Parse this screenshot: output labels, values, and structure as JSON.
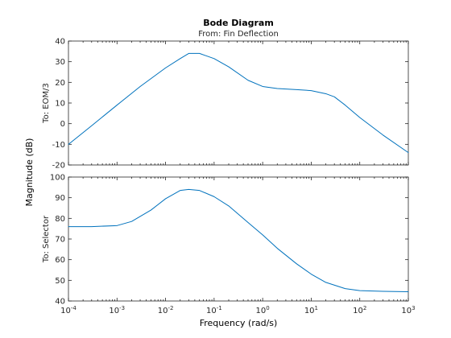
{
  "chart_data": {
    "type": "line",
    "title": "Bode Diagram",
    "subtitle": "From: Fin Deflection",
    "xlabel": "Frequency  (rad/s)",
    "ylabel": "Magnitude (dB)",
    "xscale": "log",
    "xlim": [
      0.0001,
      1000
    ],
    "xtick_labels": [
      {
        "base": "10",
        "exp": "-4"
      },
      {
        "base": "10",
        "exp": "-3"
      },
      {
        "base": "10",
        "exp": "-2"
      },
      {
        "base": "10",
        "exp": "-1"
      },
      {
        "base": "10",
        "exp": "0"
      },
      {
        "base": "10",
        "exp": "1"
      },
      {
        "base": "10",
        "exp": "2"
      },
      {
        "base": "10",
        "exp": "3"
      }
    ],
    "line_color": "#0072BD",
    "panels": [
      {
        "output": "To: EOM/3",
        "ylim": [
          -20,
          40
        ],
        "yticks": [
          "-20",
          "-10",
          "0",
          "10",
          "20",
          "30",
          "40"
        ],
        "series": [
          {
            "x": [
              0.0001,
              0.0003,
              0.001,
              0.003,
              0.01,
              0.02,
              0.03,
              0.05,
              0.1,
              0.2,
              0.5,
              1,
              2,
              5,
              10,
              20,
              30,
              50,
              100,
              300,
              1000
            ],
            "y": [
              -10,
              -1,
              9,
              18,
              27,
              31.5,
              34,
              34,
              31.5,
              27.5,
              21,
              18,
              17,
              16.5,
              16,
              14.5,
              13,
              9,
              3,
              -5.5,
              -14
            ]
          }
        ]
      },
      {
        "output": "To: Selector",
        "ylim": [
          40,
          100
        ],
        "yticks": [
          "40",
          "50",
          "60",
          "70",
          "80",
          "90",
          "100"
        ],
        "series": [
          {
            "x": [
              0.0001,
              0.0003,
              0.001,
              0.002,
              0.005,
              0.01,
              0.02,
              0.03,
              0.05,
              0.1,
              0.2,
              0.5,
              1,
              2,
              5,
              10,
              20,
              50,
              100,
              300,
              1000
            ],
            "y": [
              76,
              76,
              76.5,
              78.5,
              84,
              89.5,
              93.5,
              94,
              93.5,
              90.5,
              86,
              78,
              72,
              65.5,
              58,
              53,
              49,
              46,
              45,
              44.7,
              44.5
            ]
          }
        ]
      }
    ]
  }
}
